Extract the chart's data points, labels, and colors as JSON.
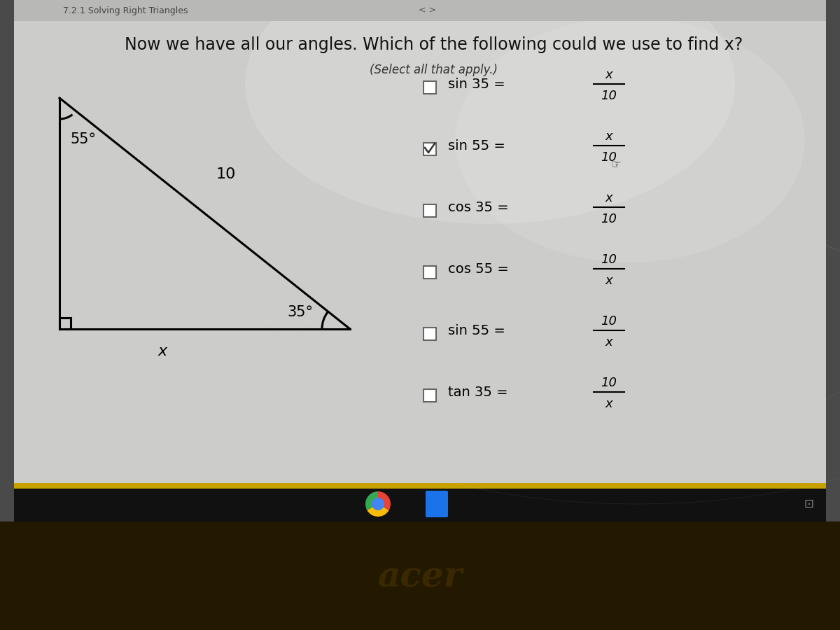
{
  "title": "Now we have all our angles. Which of the following could we use to find x?",
  "subtitle": "(Select all that apply.)",
  "screen_bg": "#d0d0ce",
  "taskbar_color": "#111111",
  "laptop_body_color": "#231800",
  "triangle": {
    "angle_top_label": "55°",
    "angle_br_label": "35°",
    "hyp_label": "10",
    "base_label": "x"
  },
  "options": [
    {
      "label": "sin 35 = ",
      "frac_num": "x",
      "frac_den": "10",
      "checked": false
    },
    {
      "label": "sin 55 = ",
      "frac_num": "x",
      "frac_den": "10",
      "checked": true
    },
    {
      "label": "cos 35 = ",
      "frac_num": "x",
      "frac_den": "10",
      "checked": false
    },
    {
      "label": "cos 55 = ",
      "frac_num": "10",
      "frac_den": "x",
      "checked": false
    },
    {
      "label": "sin 55 = ",
      "frac_num": "10",
      "frac_den": "x",
      "checked": false
    },
    {
      "label": "tan 35 = ",
      "frac_num": "10",
      "frac_den": "x",
      "checked": false
    }
  ],
  "acer_text": "acer",
  "header_text": "7.2.1 Solving Right Triangles",
  "nav_text": "< >"
}
